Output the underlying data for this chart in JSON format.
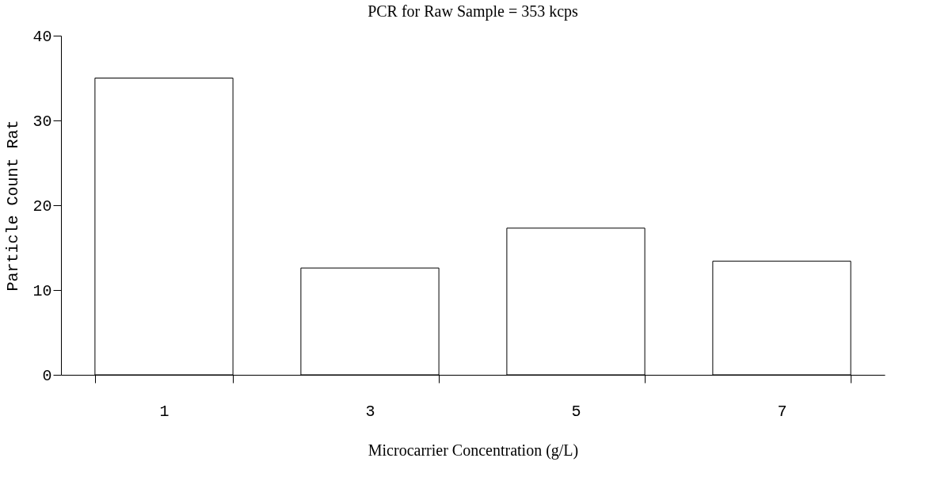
{
  "chart_data": {
    "type": "bar",
    "title": "PCR for Raw Sample = 353 kcps",
    "xlabel": "Microcarrier Concentration (g/L)",
    "ylabel": "Particle Count Rat",
    "categories": [
      "1",
      "3",
      "5",
      "7"
    ],
    "values": [
      35.0,
      12.6,
      17.3,
      13.4
    ],
    "color": "#ffffff",
    "ylim": [
      0,
      40
    ],
    "yticks": [
      0,
      10,
      20,
      30,
      40
    ],
    "grid": false
  }
}
